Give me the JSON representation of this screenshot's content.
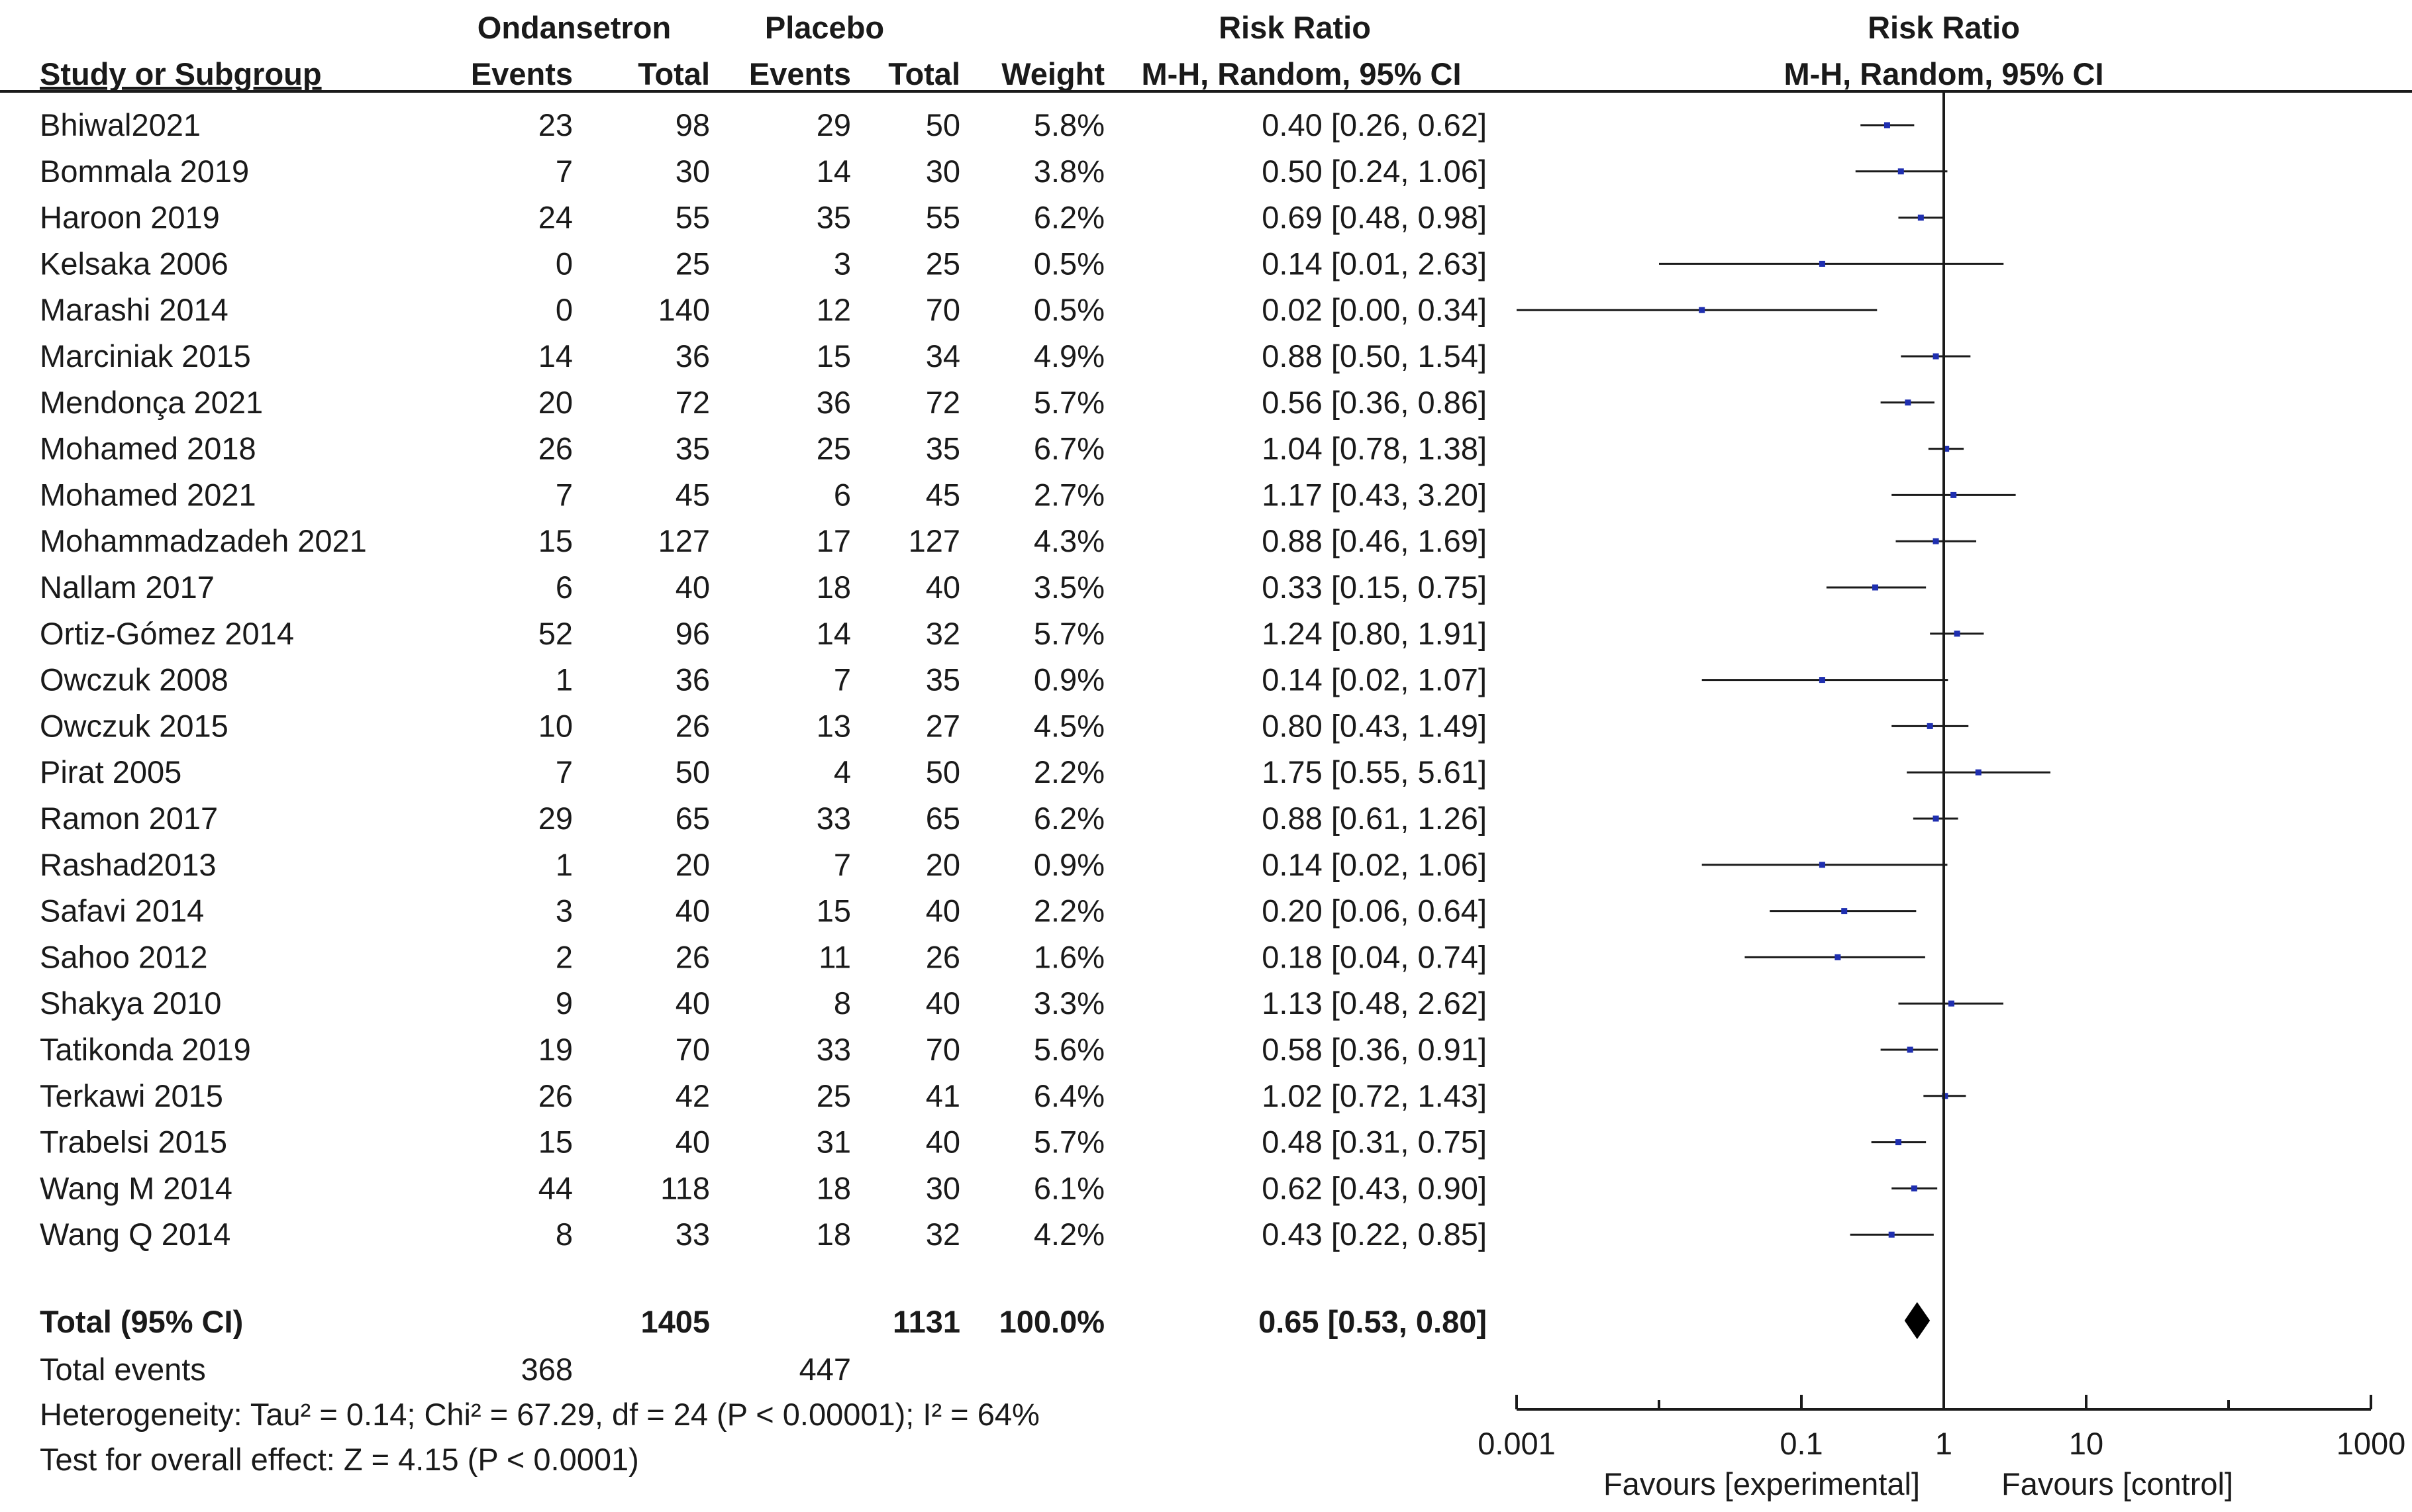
{
  "chart_data": {
    "type": "forest",
    "header": {
      "group1": "Ondansetron",
      "group2": "Placebo",
      "risk_ratio": "Risk Ratio",
      "plot_title": "Risk Ratio",
      "col_study": "Study or Subgroup",
      "col_events1": "Events",
      "col_total1": "Total",
      "col_events2": "Events",
      "col_total2": "Total",
      "col_weight": "Weight",
      "col_ci": "M-H, Random, 95% CI",
      "plot_ci": "M-H, Random, 95% CI"
    },
    "studies": [
      {
        "name": "Bhiwal2021",
        "e1": "23",
        "t1": "98",
        "e2": "29",
        "t2": "50",
        "weight": "5.8%",
        "rr": 0.4,
        "lo": 0.26,
        "hi": 0.62,
        "ci": "0.40 [0.26, 0.62]"
      },
      {
        "name": "Bommala 2019",
        "e1": "7",
        "t1": "30",
        "e2": "14",
        "t2": "30",
        "weight": "3.8%",
        "rr": 0.5,
        "lo": 0.24,
        "hi": 1.06,
        "ci": "0.50 [0.24, 1.06]"
      },
      {
        "name": "Haroon 2019",
        "e1": "24",
        "t1": "55",
        "e2": "35",
        "t2": "55",
        "weight": "6.2%",
        "rr": 0.69,
        "lo": 0.48,
        "hi": 0.98,
        "ci": "0.69 [0.48, 0.98]"
      },
      {
        "name": "Kelsaka 2006",
        "e1": "0",
        "t1": "25",
        "e2": "3",
        "t2": "25",
        "weight": "0.5%",
        "rr": 0.14,
        "lo": 0.01,
        "hi": 2.63,
        "ci": "0.14 [0.01, 2.63]"
      },
      {
        "name": "Marashi 2014",
        "e1": "0",
        "t1": "140",
        "e2": "12",
        "t2": "70",
        "weight": "0.5%",
        "rr": 0.02,
        "lo": 0.001,
        "hi": 0.34,
        "ci": "0.02 [0.00, 0.34]"
      },
      {
        "name": "Marciniak 2015",
        "e1": "14",
        "t1": "36",
        "e2": "15",
        "t2": "34",
        "weight": "4.9%",
        "rr": 0.88,
        "lo": 0.5,
        "hi": 1.54,
        "ci": "0.88 [0.50, 1.54]"
      },
      {
        "name": "Mendonça 2021",
        "e1": "20",
        "t1": "72",
        "e2": "36",
        "t2": "72",
        "weight": "5.7%",
        "rr": 0.56,
        "lo": 0.36,
        "hi": 0.86,
        "ci": "0.56 [0.36, 0.86]"
      },
      {
        "name": "Mohamed 2018",
        "e1": "26",
        "t1": "35",
        "e2": "25",
        "t2": "35",
        "weight": "6.7%",
        "rr": 1.04,
        "lo": 0.78,
        "hi": 1.38,
        "ci": "1.04 [0.78, 1.38]"
      },
      {
        "name": "Mohamed 2021",
        "e1": "7",
        "t1": "45",
        "e2": "6",
        "t2": "45",
        "weight": "2.7%",
        "rr": 1.17,
        "lo": 0.43,
        "hi": 3.2,
        "ci": "1.17 [0.43, 3.20]"
      },
      {
        "name": "Mohammadzadeh 2021",
        "e1": "15",
        "t1": "127",
        "e2": "17",
        "t2": "127",
        "weight": "4.3%",
        "rr": 0.88,
        "lo": 0.46,
        "hi": 1.69,
        "ci": "0.88 [0.46, 1.69]"
      },
      {
        "name": "Nallam 2017",
        "e1": "6",
        "t1": "40",
        "e2": "18",
        "t2": "40",
        "weight": "3.5%",
        "rr": 0.33,
        "lo": 0.15,
        "hi": 0.75,
        "ci": "0.33 [0.15, 0.75]"
      },
      {
        "name": "Ortiz-Gómez 2014",
        "e1": "52",
        "t1": "96",
        "e2": "14",
        "t2": "32",
        "weight": "5.7%",
        "rr": 1.24,
        "lo": 0.8,
        "hi": 1.91,
        "ci": "1.24 [0.80, 1.91]"
      },
      {
        "name": "Owczuk 2008",
        "e1": "1",
        "t1": "36",
        "e2": "7",
        "t2": "35",
        "weight": "0.9%",
        "rr": 0.14,
        "lo": 0.02,
        "hi": 1.07,
        "ci": "0.14 [0.02, 1.07]"
      },
      {
        "name": "Owczuk 2015",
        "e1": "10",
        "t1": "26",
        "e2": "13",
        "t2": "27",
        "weight": "4.5%",
        "rr": 0.8,
        "lo": 0.43,
        "hi": 1.49,
        "ci": "0.80 [0.43, 1.49]"
      },
      {
        "name": "Pirat 2005",
        "e1": "7",
        "t1": "50",
        "e2": "4",
        "t2": "50",
        "weight": "2.2%",
        "rr": 1.75,
        "lo": 0.55,
        "hi": 5.61,
        "ci": "1.75 [0.55, 5.61]"
      },
      {
        "name": "Ramon 2017",
        "e1": "29",
        "t1": "65",
        "e2": "33",
        "t2": "65",
        "weight": "6.2%",
        "rr": 0.88,
        "lo": 0.61,
        "hi": 1.26,
        "ci": "0.88 [0.61, 1.26]"
      },
      {
        "name": "Rashad2013",
        "e1": "1",
        "t1": "20",
        "e2": "7",
        "t2": "20",
        "weight": "0.9%",
        "rr": 0.14,
        "lo": 0.02,
        "hi": 1.06,
        "ci": "0.14 [0.02, 1.06]"
      },
      {
        "name": "Safavi 2014",
        "e1": "3",
        "t1": "40",
        "e2": "15",
        "t2": "40",
        "weight": "2.2%",
        "rr": 0.2,
        "lo": 0.06,
        "hi": 0.64,
        "ci": "0.20 [0.06, 0.64]"
      },
      {
        "name": "Sahoo 2012",
        "e1": "2",
        "t1": "26",
        "e2": "11",
        "t2": "26",
        "weight": "1.6%",
        "rr": 0.18,
        "lo": 0.04,
        "hi": 0.74,
        "ci": "0.18 [0.04, 0.74]"
      },
      {
        "name": "Shakya 2010",
        "e1": "9",
        "t1": "40",
        "e2": "8",
        "t2": "40",
        "weight": "3.3%",
        "rr": 1.13,
        "lo": 0.48,
        "hi": 2.62,
        "ci": "1.13 [0.48, 2.62]"
      },
      {
        "name": "Tatikonda 2019",
        "e1": "19",
        "t1": "70",
        "e2": "33",
        "t2": "70",
        "weight": "5.6%",
        "rr": 0.58,
        "lo": 0.36,
        "hi": 0.91,
        "ci": "0.58 [0.36, 0.91]"
      },
      {
        "name": "Terkawi 2015",
        "e1": "26",
        "t1": "42",
        "e2": "25",
        "t2": "41",
        "weight": "6.4%",
        "rr": 1.02,
        "lo": 0.72,
        "hi": 1.43,
        "ci": "1.02 [0.72, 1.43]"
      },
      {
        "name": "Trabelsi 2015",
        "e1": "15",
        "t1": "40",
        "e2": "31",
        "t2": "40",
        "weight": "5.7%",
        "rr": 0.48,
        "lo": 0.31,
        "hi": 0.75,
        "ci": "0.48 [0.31, 0.75]"
      },
      {
        "name": "Wang M 2014",
        "e1": "44",
        "t1": "118",
        "e2": "18",
        "t2": "30",
        "weight": "6.1%",
        "rr": 0.62,
        "lo": 0.43,
        "hi": 0.9,
        "ci": "0.62 [0.43, 0.90]"
      },
      {
        "name": "Wang Q 2014",
        "e1": "8",
        "t1": "33",
        "e2": "18",
        "t2": "32",
        "weight": "4.2%",
        "rr": 0.43,
        "lo": 0.22,
        "hi": 0.85,
        "ci": "0.43 [0.22, 0.85]"
      }
    ],
    "total": {
      "label": "Total (95% CI)",
      "t1": "1405",
      "t2": "1131",
      "weight": "100.0%",
      "ci": "0.65 [0.53, 0.80]",
      "rr": 0.65,
      "lo": 0.53,
      "hi": 0.8
    },
    "total_events": {
      "label": "Total events",
      "e1": "368",
      "e2": "447"
    },
    "heterogeneity": "Heterogeneity: Tau² = 0.14; Chi² = 67.29, df = 24 (P < 0.00001); I² = 64%",
    "overall_effect": "Test for overall effect: Z = 4.15 (P < 0.0001)",
    "axis": {
      "scale": "log",
      "range": [
        0.001,
        1000
      ],
      "ticks": [
        0.001,
        0.1,
        1,
        10,
        1000
      ],
      "tick_labels": [
        "0.001",
        "0.1",
        "1",
        "10",
        "1000"
      ],
      "null_value": 1,
      "favours_left": "Favours [experimental]",
      "favours_right": "Favours [control]"
    },
    "colors": {
      "marker": "#1f2fb0",
      "line": "#1a1a1a",
      "text": "#1a1a1a"
    }
  }
}
